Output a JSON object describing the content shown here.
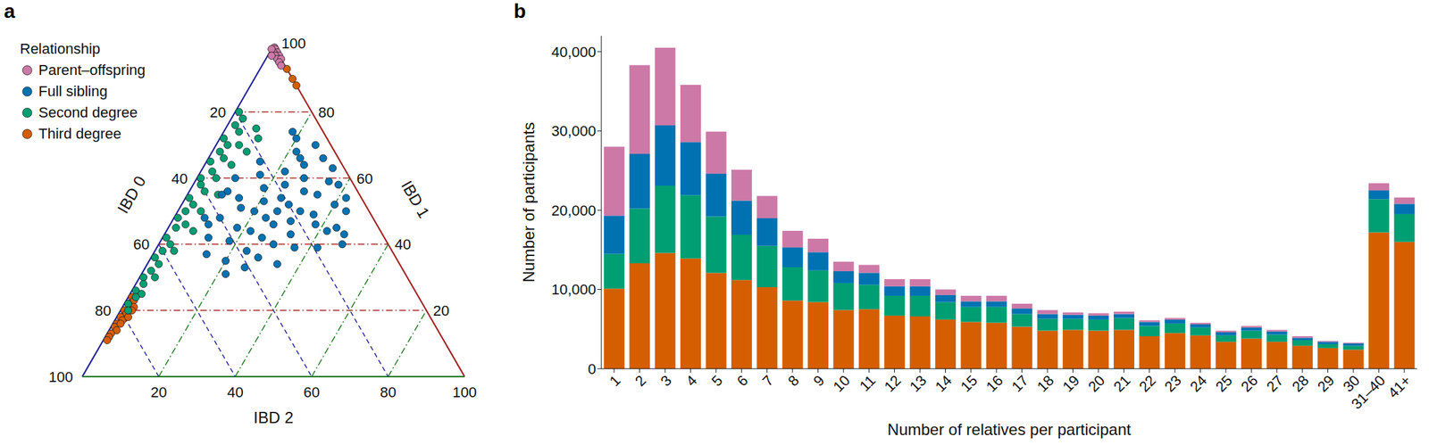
{
  "chart_data": [
    {
      "type": "ternary",
      "title": "a",
      "legend_title": "Relationship",
      "legend": "upper left",
      "grid": true,
      "axes": [
        {
          "label": "IBD 0",
          "lim": [
            0,
            100
          ],
          "ticks": [
            20,
            40,
            60,
            80,
            100
          ]
        },
        {
          "label": "IBD 1",
          "lim": [
            0,
            100
          ],
          "ticks": [
            20,
            40,
            60,
            80,
            100
          ]
        },
        {
          "label": "IBD 2",
          "lim": [
            0,
            100
          ],
          "ticks": [
            20,
            40,
            60,
            80,
            100
          ]
        }
      ],
      "series": [
        {
          "name": "Parent–offspring",
          "color": "#cc79a7",
          "marker": "circle",
          "points": [
            [
              0,
              99.5,
              0.5
            ],
            [
              0,
              99,
              1
            ],
            [
              0,
              98,
              2
            ],
            [
              1,
              98,
              1
            ],
            [
              0,
              97,
              3
            ],
            [
              1,
              97,
              2
            ],
            [
              1,
              96,
              3
            ],
            [
              0,
              96,
              4
            ],
            [
              1,
              95,
              4
            ],
            [
              1,
              94,
              5
            ],
            [
              1,
              99,
              0
            ],
            [
              2,
              97,
              1
            ]
          ]
        },
        {
          "name": "Full sibling",
          "color": "#0072b2",
          "marker": "circle",
          "points": [
            [
              24,
              50,
              26
            ],
            [
              28,
              48,
              24
            ],
            [
              20,
              52,
              28
            ],
            [
              27,
              46,
              27
            ],
            [
              21,
              54,
              25
            ],
            [
              30,
              50,
              20
            ],
            [
              18,
              50,
              32
            ],
            [
              34,
              44,
              22
            ],
            [
              14,
              56,
              30
            ],
            [
              22,
              47,
              31
            ],
            [
              26,
              53,
              21
            ],
            [
              32,
              42,
              26
            ],
            [
              18,
              58,
              24
            ],
            [
              37,
              45,
              18
            ],
            [
              11,
              55,
              34
            ],
            [
              15,
              49,
              36
            ],
            [
              33,
              51,
              16
            ],
            [
              30,
              40,
              30
            ],
            [
              12,
              60,
              28
            ],
            [
              24,
              43,
              33
            ],
            [
              24,
              57,
              19
            ],
            [
              38,
              38,
              24
            ],
            [
              16,
              62,
              22
            ],
            [
              16,
              46,
              38
            ],
            [
              32,
              54,
              14
            ],
            [
              41,
              41,
              18
            ],
            [
              6,
              59,
              35
            ],
            [
              36,
              36,
              28
            ],
            [
              10,
              64,
              26
            ],
            [
              40,
              48,
              12
            ],
            [
              8,
              52,
              40
            ],
            [
              25,
              39,
              36
            ],
            [
              23,
              61,
              16
            ],
            [
              14,
              44,
              42
            ],
            [
              34,
              56,
              10
            ],
            [
              45,
              35,
              20
            ],
            [
              4,
              66,
              30
            ],
            [
              6,
              50,
              44
            ],
            [
              44,
              46,
              10
            ],
            [
              3,
              63,
              34
            ],
            [
              49,
              37,
              14
            ],
            [
              10,
              68,
              22
            ],
            [
              46,
              42,
              12
            ],
            [
              4,
              58,
              38
            ],
            [
              41,
              33,
              26
            ],
            [
              4,
              70,
              26
            ],
            [
              4,
              54,
              42
            ],
            [
              11,
              45,
              44
            ],
            [
              21,
              65,
              14
            ],
            [
              32,
              34,
              34
            ],
            [
              8,
              72,
              20
            ],
            [
              19,
              39,
              42
            ],
            [
              30,
              60,
              10
            ],
            [
              10,
              66,
              24
            ],
            [
              47,
              31,
              22
            ],
            [
              8,
              74,
              18
            ],
            [
              36,
              55,
              9
            ],
            [
              10,
              43,
              47
            ],
            [
              12,
              40,
              48
            ],
            [
              44,
              48,
              8
            ]
          ]
        },
        {
          "name": "Second degree",
          "color": "#009e73",
          "marker": "circle",
          "points": [
            [
              19,
              80,
              1
            ],
            [
              19,
              78,
              3
            ],
            [
              22,
              76,
              2
            ],
            [
              22,
              74,
              4
            ],
            [
              27,
              72,
              1
            ],
            [
              27,
              70,
              3
            ],
            [
              24,
              70,
              6
            ],
            [
              30,
              68,
              2
            ],
            [
              30,
              66,
              4
            ],
            [
              34,
              65,
              1
            ],
            [
              29,
              64,
              7
            ],
            [
              35,
              62,
              3
            ],
            [
              39,
              60,
              1
            ],
            [
              35,
              60,
              5
            ],
            [
              40,
              58,
              2
            ],
            [
              40,
              56,
              4
            ],
            [
              37,
              55,
              8
            ],
            [
              45,
              54,
              1
            ],
            [
              45,
              52,
              3
            ],
            [
              48,
              50,
              2
            ],
            [
              44,
              50,
              6
            ],
            [
              51,
              48,
              1
            ],
            [
              50,
              46,
              4
            ],
            [
              53,
              45,
              2
            ],
            [
              49,
              44,
              7
            ],
            [
              57,
              42,
              1
            ],
            [
              57,
              40,
              3
            ],
            [
              60,
              38,
              2
            ],
            [
              57,
              38,
              5
            ],
            [
              63,
              36,
              1
            ],
            [
              63,
              34,
              3
            ],
            [
              66,
              32,
              2
            ],
            [
              69,
              30,
              1
            ],
            [
              66,
              30,
              4
            ],
            [
              70,
              28,
              2
            ],
            [
              73,
              26,
              1
            ],
            [
              72,
              25,
              3
            ],
            [
              74,
              24,
              2
            ],
            [
              77,
              22,
              1
            ],
            [
              78,
              20,
              2
            ],
            [
              17,
              75,
              8
            ],
            [
              18,
              72,
              10
            ],
            [
              23,
              68,
              9
            ]
          ]
        },
        {
          "name": "Third degree",
          "color": "#d55e00",
          "marker": "circle",
          "points": [
            [
              73,
              25,
              2
            ],
            [
              75,
              24,
              1
            ],
            [
              75,
              23,
              2
            ],
            [
              77,
              22,
              1
            ],
            [
              76,
              21,
              3
            ],
            [
              79,
              20,
              1
            ],
            [
              79,
              19,
              2
            ],
            [
              81,
              18,
              1
            ],
            [
              81,
              17,
              2
            ],
            [
              83,
              16,
              1
            ],
            [
              84,
              15,
              1
            ],
            [
              84,
              14,
              2
            ],
            [
              86,
              13,
              1
            ],
            [
              87,
              12,
              1
            ],
            [
              88,
              11,
              1
            ],
            [
              77,
              20,
              3
            ],
            [
              79,
              18,
              3
            ],
            [
              82,
              16,
              2
            ],
            [
              0,
              93,
              7
            ],
            [
              0,
              90,
              10
            ],
            [
              0,
              88,
              12
            ]
          ]
        }
      ]
    },
    {
      "type": "bar",
      "title": "b",
      "stacked": true,
      "grid": false,
      "x_label": "Number of relatives per participant",
      "y_label": "Number of participants",
      "categories": [
        "1",
        "2",
        "3",
        "4",
        "5",
        "6",
        "7",
        "8",
        "9",
        "10",
        "11",
        "12",
        "13",
        "14",
        "15",
        "16",
        "17",
        "18",
        "19",
        "20",
        "21",
        "22",
        "23",
        "24",
        "25",
        "26",
        "27",
        "28",
        "29",
        "30",
        "31–40",
        "41+"
      ],
      "ylim": [
        0,
        42000
      ],
      "yticks": [
        0,
        {
          "value": 10000,
          "label": "10,000"
        },
        {
          "value": 20000,
          "label": "20,000"
        },
        {
          "value": 30000,
          "label": "30,000"
        },
        {
          "value": 40000,
          "label": "40,000"
        }
      ],
      "series": [
        {
          "name": "Third degree",
          "color": "#d55e00",
          "values": [
            10100,
            13300,
            14600,
            13900,
            12100,
            11200,
            10300,
            8600,
            8400,
            7400,
            7500,
            6700,
            6600,
            6200,
            5900,
            5800,
            5300,
            4800,
            4900,
            4800,
            4900,
            4100,
            4500,
            4200,
            3400,
            3800,
            3400,
            2900,
            2600,
            2400,
            17200,
            16000
          ]
        },
        {
          "name": "Second degree",
          "color": "#009e73",
          "values": [
            4400,
            6900,
            8500,
            8000,
            7100,
            5700,
            5200,
            4200,
            4000,
            3400,
            3100,
            2500,
            2600,
            2200,
            1900,
            2000,
            1600,
            1500,
            1400,
            1400,
            1500,
            1300,
            1200,
            1000,
            800,
            1000,
            900,
            700,
            500,
            500,
            4200,
            3500
          ]
        },
        {
          "name": "Full sibling",
          "color": "#0072b2",
          "values": [
            4800,
            6900,
            7600,
            6700,
            5400,
            4300,
            3500,
            2500,
            2300,
            1500,
            1500,
            1200,
            1200,
            900,
            700,
            700,
            700,
            600,
            500,
            500,
            500,
            500,
            500,
            400,
            400,
            400,
            400,
            300,
            300,
            300,
            1100,
            1300
          ]
        },
        {
          "name": "Parent–offspring",
          "color": "#cc79a7",
          "values": [
            8700,
            11200,
            9800,
            7200,
            5300,
            3900,
            2800,
            2100,
            1700,
            1200,
            1000,
            900,
            900,
            700,
            700,
            700,
            600,
            500,
            300,
            300,
            300,
            200,
            200,
            200,
            200,
            200,
            200,
            200,
            100,
            100,
            900,
            800
          ]
        }
      ]
    }
  ]
}
